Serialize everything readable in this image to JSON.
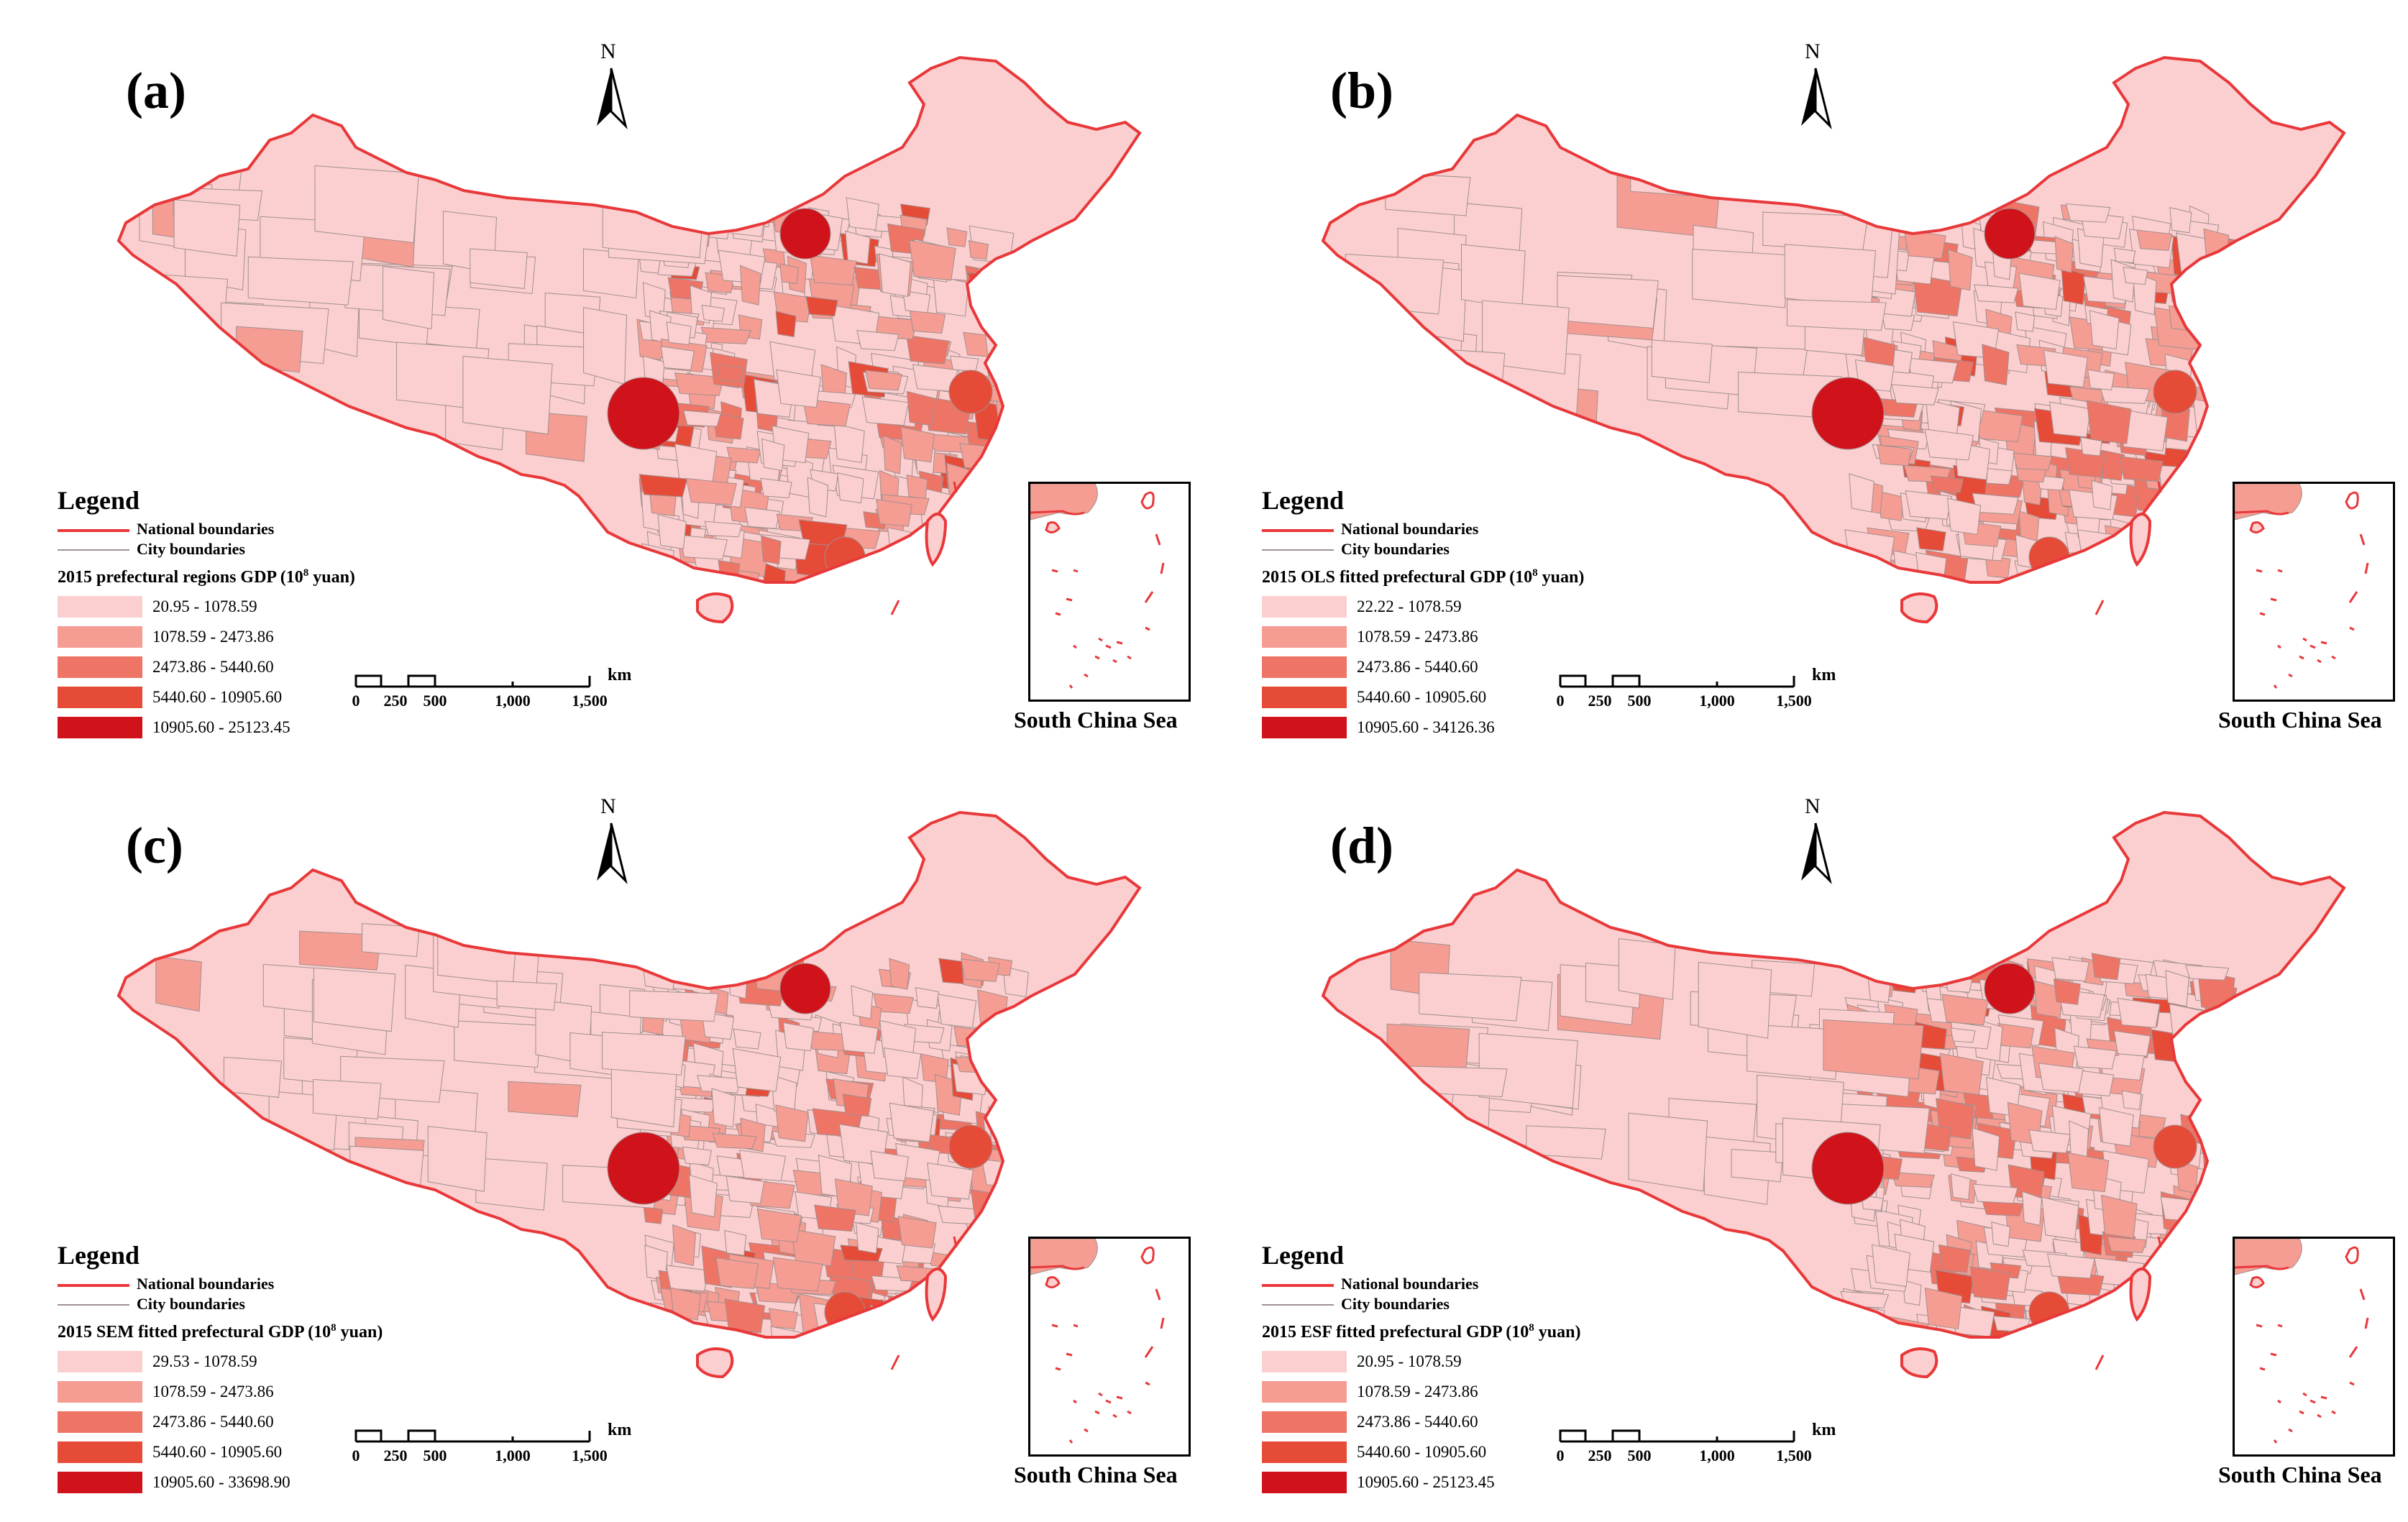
{
  "colors": {
    "national_boundary": "#e8383a",
    "city_boundary": "#a08f8f",
    "class_1": "#fbcfcf",
    "class_2": "#f59d93",
    "class_3": "#ee7466",
    "class_4": "#e64b38",
    "class_5": "#d0121a"
  },
  "legend_common": {
    "title": "Legend",
    "national_boundaries": "National boundaries",
    "city_boundaries": "City boundaries"
  },
  "north_arrow": {
    "letter": "N",
    "icon": "north-arrow-icon"
  },
  "scale": {
    "ticks": [
      "0",
      "250",
      "500",
      "1,000",
      "1,500"
    ],
    "unit": "km"
  },
  "inset_caption": "South China Sea",
  "panels": [
    {
      "label": "(a)",
      "legend_title": "2015 prefectural regions GDP (10",
      "legend_title_sup": "8",
      "legend_title_end": " yuan)",
      "classes": [
        "20.95 - 1078.59",
        "1078.59 - 2473.86",
        "2473.86 - 5440.60",
        "5440.60 - 10905.60",
        "10905.60 - 25123.45"
      ]
    },
    {
      "label": "(b)",
      "legend_title": "2015 OLS fitted prefectural GDP (10",
      "legend_title_sup": "8",
      "legend_title_end": " yuan)",
      "classes": [
        "22.22 - 1078.59",
        "1078.59 - 2473.86",
        "2473.86 - 5440.60",
        "5440.60 - 10905.60",
        "10905.60 - 34126.36"
      ]
    },
    {
      "label": "(c)",
      "legend_title": "2015 SEM fitted prefectural GDP (10",
      "legend_title_sup": "8",
      "legend_title_end": " yuan)",
      "classes": [
        "29.53 - 1078.59",
        "1078.59 - 2473.86",
        "2473.86 - 5440.60",
        "5440.60 - 10905.60",
        "10905.60 - 33698.90"
      ]
    },
    {
      "label": "(d)",
      "legend_title": "2015 ESF fitted prefectural GDP (10",
      "legend_title_sup": "8",
      "legend_title_end": " yuan)",
      "classes": [
        "20.95 - 1078.59",
        "1078.59 - 2473.86",
        "2473.86 - 5440.60",
        "5440.60 - 10905.60",
        "10905.60 - 25123.45"
      ]
    }
  ]
}
